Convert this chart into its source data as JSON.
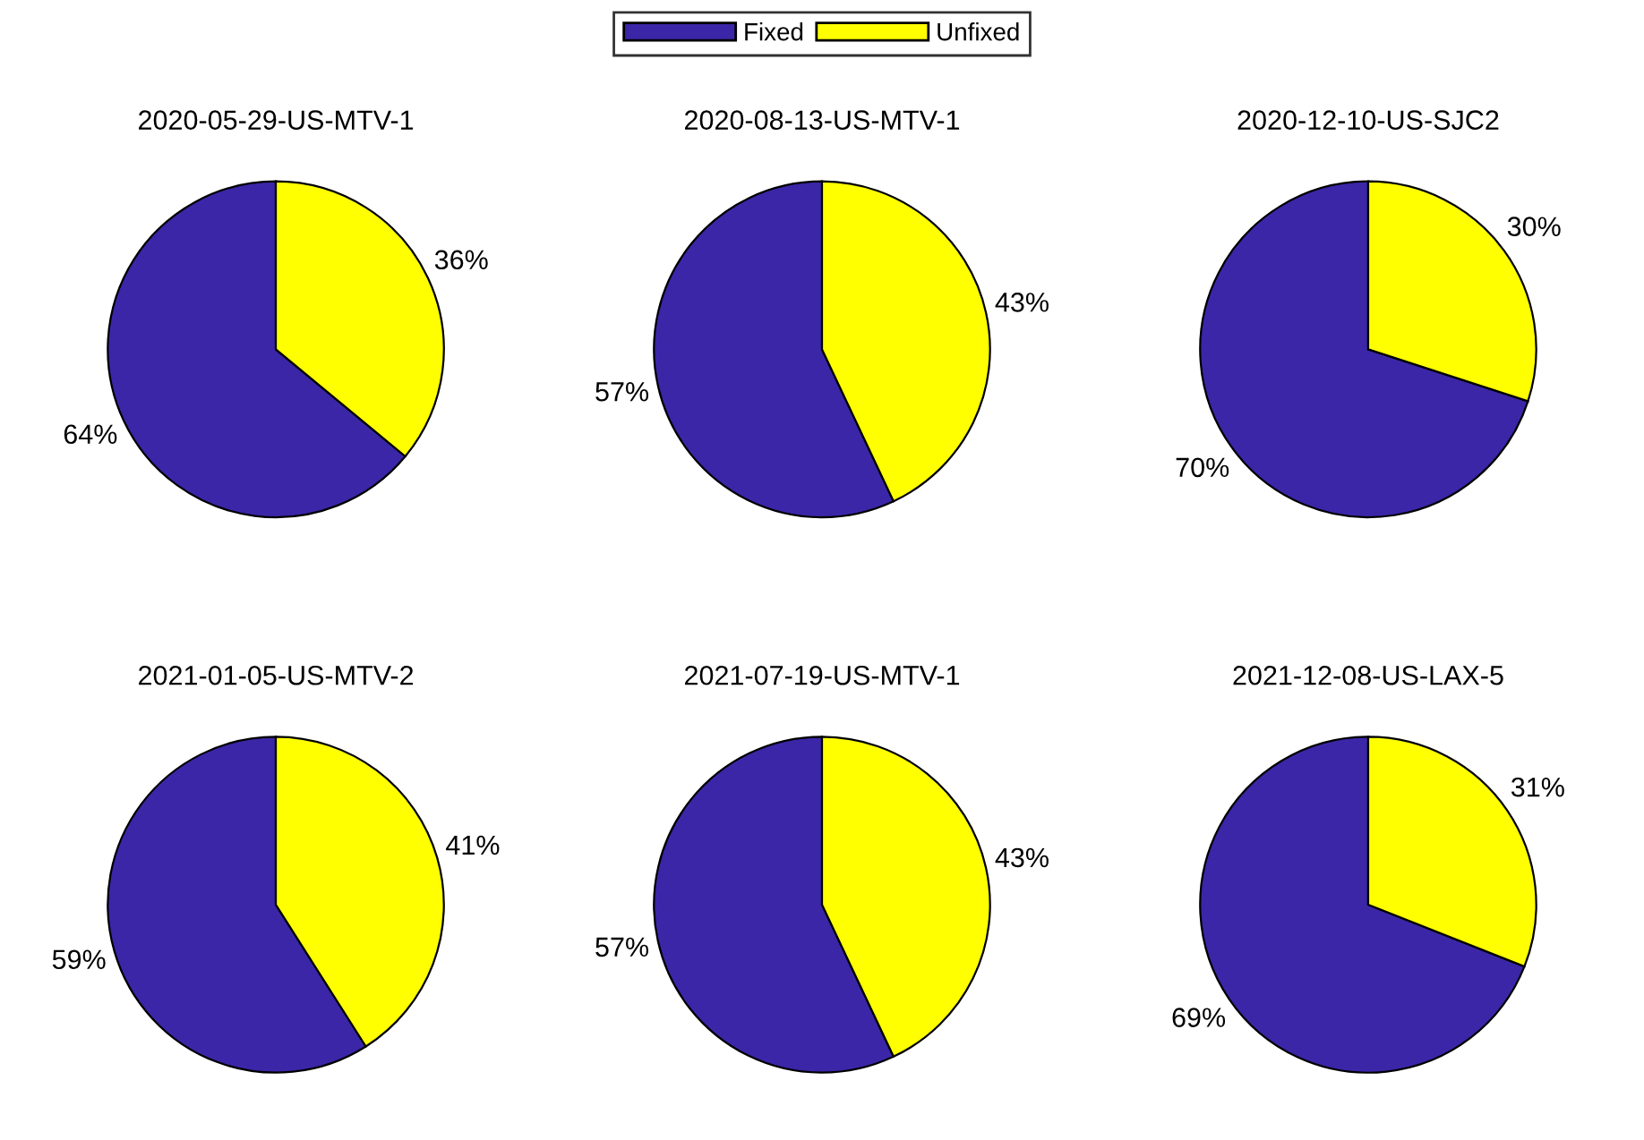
{
  "chart_data": [
    {
      "type": "pie",
      "title": "2020-05-29-US-MTV-1",
      "categories": [
        "Fixed",
        "Unfixed"
      ],
      "values": [
        64,
        36
      ],
      "value_labels": [
        "64%",
        "36%"
      ],
      "colors": [
        "#3b26a8",
        "#ffff00"
      ],
      "legend": "top"
    },
    {
      "type": "pie",
      "title": "2020-08-13-US-MTV-1",
      "categories": [
        null,
        null
      ],
      "values": [
        57,
        43
      ],
      "value_labels": [
        "57%",
        "43%"
      ],
      "colors": [
        "#3b26a8",
        "#ffff00"
      ]
    },
    {
      "type": "pie",
      "title": "2020-12-10-US-SJC2",
      "categories": [
        null,
        null
      ],
      "values": [
        70,
        30
      ],
      "value_labels": [
        "70%",
        "30%"
      ],
      "colors": [
        "#3b26a8",
        "#ffff00"
      ]
    },
    {
      "type": "pie",
      "title": "2021-01-05-US-MTV-2",
      "categories": [
        null,
        null
      ],
      "values": [
        59,
        41
      ],
      "value_labels": [
        "59%",
        "41%"
      ],
      "colors": [
        "#3b26a8",
        "#ffff00"
      ]
    },
    {
      "type": "pie",
      "title": "2021-07-19-US-MTV-1",
      "categories": [
        null,
        null
      ],
      "values": [
        57,
        43
      ],
      "value_labels": [
        "57%",
        "43%"
      ],
      "colors": [
        "#3b26a8",
        "#ffff00"
      ]
    },
    {
      "type": "pie",
      "title": "2021-12-08-US-LAX-5",
      "categories": [
        null,
        null
      ],
      "values": [
        69,
        31
      ],
      "value_labels": [
        "69%",
        "31%"
      ],
      "colors": [
        "#3b26a8",
        "#ffff00"
      ]
    }
  ]
}
